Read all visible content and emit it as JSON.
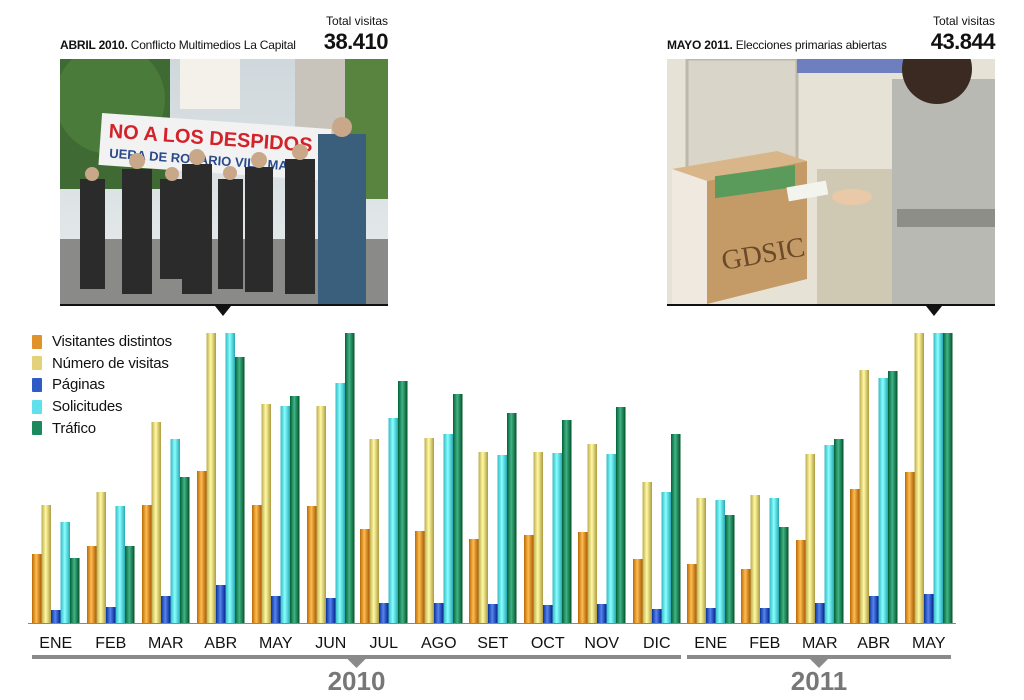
{
  "annotations": [
    {
      "caption_bold": "ABRIL 2010.",
      "caption_text": " Conflicto Multimedios La Capital",
      "total_label": "Total visitas",
      "total_value": "38.410",
      "photo_banner_line1": "NO A LOS DESPIDOS !!!",
      "photo_banner_line2": "UERA DE ROSARIO VILA MANZ"
    },
    {
      "caption_bold": "MAYO 2011.",
      "caption_text": " Elecciones primarias abiertas",
      "total_label": "Total visitas",
      "total_value": "43.844",
      "photo_box_text": "GDSIC"
    }
  ],
  "legend": [
    {
      "label": "Visitantes distintos",
      "color": "#e0932a"
    },
    {
      "label": "Número de visitas",
      "color": "#e4d27a"
    },
    {
      "label": "Páginas",
      "color": "#2f5bc4"
    },
    {
      "label": "Solicitudes",
      "color": "#5fe0ea"
    },
    {
      "label": "Tráfico",
      "color": "#1a8a5e"
    }
  ],
  "chart_data": {
    "type": "bar",
    "title": "",
    "xlabel": "",
    "ylabel": "",
    "ylim": [
      0,
      290
    ],
    "grid": false,
    "legend_position": "top-left",
    "categories": [
      "ENE",
      "FEB",
      "MAR",
      "ABR",
      "MAY",
      "JUN",
      "JUL",
      "AGO",
      "SET",
      "OCT",
      "NOV",
      "DIC",
      "ENE",
      "FEB",
      "MAR",
      "ABR",
      "MAY"
    ],
    "year_groups": [
      {
        "label": "2010",
        "count": 12
      },
      {
        "label": "2011",
        "count": 5
      }
    ],
    "series": [
      {
        "name": "Visitantes distintos",
        "color": "#e0932a",
        "values": [
          69,
          77,
          118,
          152,
          118,
          117,
          94,
          92,
          84,
          88,
          91,
          64,
          59,
          54,
          83,
          134,
          151
        ]
      },
      {
        "name": "Número de visitas",
        "color": "#e4d27a",
        "values": [
          118,
          131,
          201,
          290,
          219,
          217,
          184,
          185,
          171,
          171,
          179,
          141,
          125,
          128,
          169,
          253,
          290
        ]
      },
      {
        "name": "Páginas",
        "color": "#2f5bc4",
        "values": [
          13,
          16,
          27,
          38,
          27,
          25,
          20,
          20,
          19,
          18,
          19,
          14,
          15,
          15,
          20,
          27,
          29
        ]
      },
      {
        "name": "Solicitudes",
        "color": "#5fe0ea",
        "values": [
          101,
          117,
          184,
          290,
          217,
          240,
          205,
          189,
          168,
          170,
          169,
          131,
          123,
          125,
          178,
          245,
          290
        ]
      },
      {
        "name": "Tráfico",
        "color": "#1a8a5e",
        "values": [
          65,
          77,
          146,
          266,
          227,
          290,
          242,
          229,
          210,
          203,
          216,
          189,
          108,
          96,
          184,
          252,
          290
        ]
      }
    ]
  }
}
